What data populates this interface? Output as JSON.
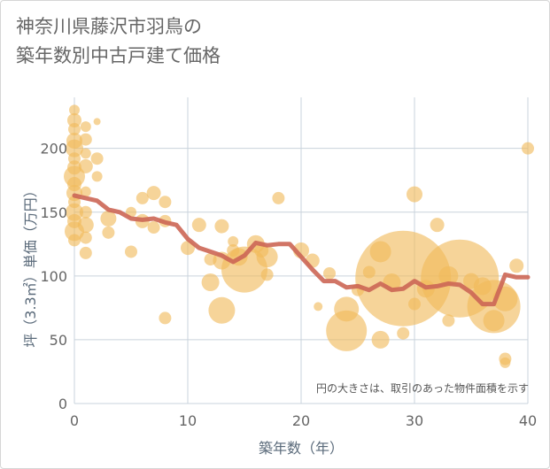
{
  "chart_title_line1": "神奈川県藤沢市羽鳥の",
  "chart_title_line2": "築年数別中古戸建て価格",
  "chart_data": {
    "type": "scatter",
    "title": "神奈川県藤沢市羽鳥の築年数別中古戸建て価格",
    "xlabel": "築年数（年）",
    "ylabel": "坪（3.3㎡）単価（万円）",
    "xlim": [
      0,
      40
    ],
    "ylim": [
      0,
      240
    ],
    "xticks": [
      0,
      10,
      20,
      30,
      40
    ],
    "yticks": [
      0,
      50,
      100,
      150,
      200
    ],
    "grid": true,
    "note": "円の大きさは、取引のあった物件面積を示す",
    "bubble_color": "#f1b95a",
    "line_color": "#cc6655",
    "bubbles": [
      {
        "x": 0,
        "y": 230,
        "s": 6
      },
      {
        "x": 0,
        "y": 222,
        "s": 8
      },
      {
        "x": 0,
        "y": 215,
        "s": 7
      },
      {
        "x": 0,
        "y": 206,
        "s": 9
      },
      {
        "x": 0,
        "y": 200,
        "s": 10
      },
      {
        "x": 0,
        "y": 192,
        "s": 7
      },
      {
        "x": 0,
        "y": 185,
        "s": 8
      },
      {
        "x": 0,
        "y": 178,
        "s": 12
      },
      {
        "x": 0,
        "y": 172,
        "s": 8
      },
      {
        "x": 0,
        "y": 165,
        "s": 9
      },
      {
        "x": 0,
        "y": 158,
        "s": 7
      },
      {
        "x": 0,
        "y": 150,
        "s": 10
      },
      {
        "x": 0,
        "y": 143,
        "s": 8
      },
      {
        "x": 0,
        "y": 135,
        "s": 11
      },
      {
        "x": 0,
        "y": 128,
        "s": 7
      },
      {
        "x": 1,
        "y": 217,
        "s": 6
      },
      {
        "x": 1,
        "y": 207,
        "s": 7
      },
      {
        "x": 1,
        "y": 196,
        "s": 6
      },
      {
        "x": 1,
        "y": 186,
        "s": 8
      },
      {
        "x": 1,
        "y": 166,
        "s": 6
      },
      {
        "x": 1,
        "y": 150,
        "s": 7
      },
      {
        "x": 1,
        "y": 140,
        "s": 9
      },
      {
        "x": 1,
        "y": 130,
        "s": 7
      },
      {
        "x": 1,
        "y": 118,
        "s": 7
      },
      {
        "x": 2,
        "y": 221,
        "s": 4
      },
      {
        "x": 2,
        "y": 192,
        "s": 7
      },
      {
        "x": 2,
        "y": 178,
        "s": 6
      },
      {
        "x": 3,
        "y": 145,
        "s": 9
      },
      {
        "x": 3,
        "y": 134,
        "s": 7
      },
      {
        "x": 5,
        "y": 150,
        "s": 6
      },
      {
        "x": 5,
        "y": 119,
        "s": 7
      },
      {
        "x": 6,
        "y": 161,
        "s": 7
      },
      {
        "x": 6,
        "y": 143,
        "s": 8
      },
      {
        "x": 7,
        "y": 165,
        "s": 8
      },
      {
        "x": 7,
        "y": 138,
        "s": 7
      },
      {
        "x": 8,
        "y": 158,
        "s": 7
      },
      {
        "x": 8,
        "y": 143,
        "s": 7
      },
      {
        "x": 8,
        "y": 67,
        "s": 7
      },
      {
        "x": 10,
        "y": 122,
        "s": 8
      },
      {
        "x": 11,
        "y": 140,
        "s": 8
      },
      {
        "x": 12,
        "y": 113,
        "s": 7
      },
      {
        "x": 12,
        "y": 95,
        "s": 10
      },
      {
        "x": 13,
        "y": 139,
        "s": 8
      },
      {
        "x": 13,
        "y": 112,
        "s": 10
      },
      {
        "x": 13,
        "y": 73,
        "s": 15
      },
      {
        "x": 14,
        "y": 127,
        "s": 6
      },
      {
        "x": 14,
        "y": 120,
        "s": 7
      },
      {
        "x": 14.5,
        "y": 115,
        "s": 10
      },
      {
        "x": 15,
        "y": 105,
        "s": 26
      },
      {
        "x": 16,
        "y": 125,
        "s": 10
      },
      {
        "x": 16.5,
        "y": 120,
        "s": 8
      },
      {
        "x": 17,
        "y": 115,
        "s": 12
      },
      {
        "x": 17,
        "y": 101,
        "s": 7
      },
      {
        "x": 18,
        "y": 161,
        "s": 7
      },
      {
        "x": 20,
        "y": 120,
        "s": 9
      },
      {
        "x": 21,
        "y": 112,
        "s": 8
      },
      {
        "x": 21.5,
        "y": 76,
        "s": 5
      },
      {
        "x": 22.5,
        "y": 102,
        "s": 7
      },
      {
        "x": 24,
        "y": 57,
        "s": 23
      },
      {
        "x": 24,
        "y": 74,
        "s": 14
      },
      {
        "x": 25,
        "y": 89,
        "s": 7
      },
      {
        "x": 26,
        "y": 103,
        "s": 7
      },
      {
        "x": 27,
        "y": 119,
        "s": 12
      },
      {
        "x": 27,
        "y": 50,
        "s": 10
      },
      {
        "x": 28,
        "y": 95,
        "s": 10
      },
      {
        "x": 29,
        "y": 98,
        "s": 54
      },
      {
        "x": 29,
        "y": 55,
        "s": 7
      },
      {
        "x": 30,
        "y": 164,
        "s": 9
      },
      {
        "x": 30,
        "y": 78,
        "s": 7
      },
      {
        "x": 31,
        "y": 90,
        "s": 10
      },
      {
        "x": 32,
        "y": 140,
        "s": 8
      },
      {
        "x": 33,
        "y": 100,
        "s": 11
      },
      {
        "x": 33,
        "y": 65,
        "s": 7
      },
      {
        "x": 34,
        "y": 98,
        "s": 44
      },
      {
        "x": 35,
        "y": 96,
        "s": 9
      },
      {
        "x": 36,
        "y": 92,
        "s": 10
      },
      {
        "x": 37,
        "y": 76,
        "s": 30
      },
      {
        "x": 37,
        "y": 65,
        "s": 12
      },
      {
        "x": 38,
        "y": 82,
        "s": 14
      },
      {
        "x": 38,
        "y": 35,
        "s": 7
      },
      {
        "x": 38,
        "y": 32,
        "s": 6
      },
      {
        "x": 39,
        "y": 108,
        "s": 8
      },
      {
        "x": 40,
        "y": 200,
        "s": 7
      }
    ],
    "trend": {
      "x": [
        0,
        1,
        2,
        3,
        4,
        5,
        6,
        7,
        8,
        9,
        10,
        11,
        12,
        13,
        14,
        15,
        16,
        17,
        18,
        19,
        20,
        21,
        22,
        23,
        24,
        25,
        26,
        27,
        28,
        29,
        30,
        31,
        32,
        33,
        34,
        35,
        36,
        37,
        38,
        39,
        40
      ],
      "y": [
        163,
        161,
        159,
        152,
        150,
        145,
        144,
        145,
        142,
        140,
        129,
        122,
        119,
        116,
        111,
        116,
        126,
        124,
        125,
        125,
        115,
        105,
        96,
        96,
        91,
        92,
        89,
        94,
        89,
        90,
        96,
        91,
        92,
        94,
        93,
        87,
        78,
        78,
        101,
        99,
        99
      ]
    }
  }
}
